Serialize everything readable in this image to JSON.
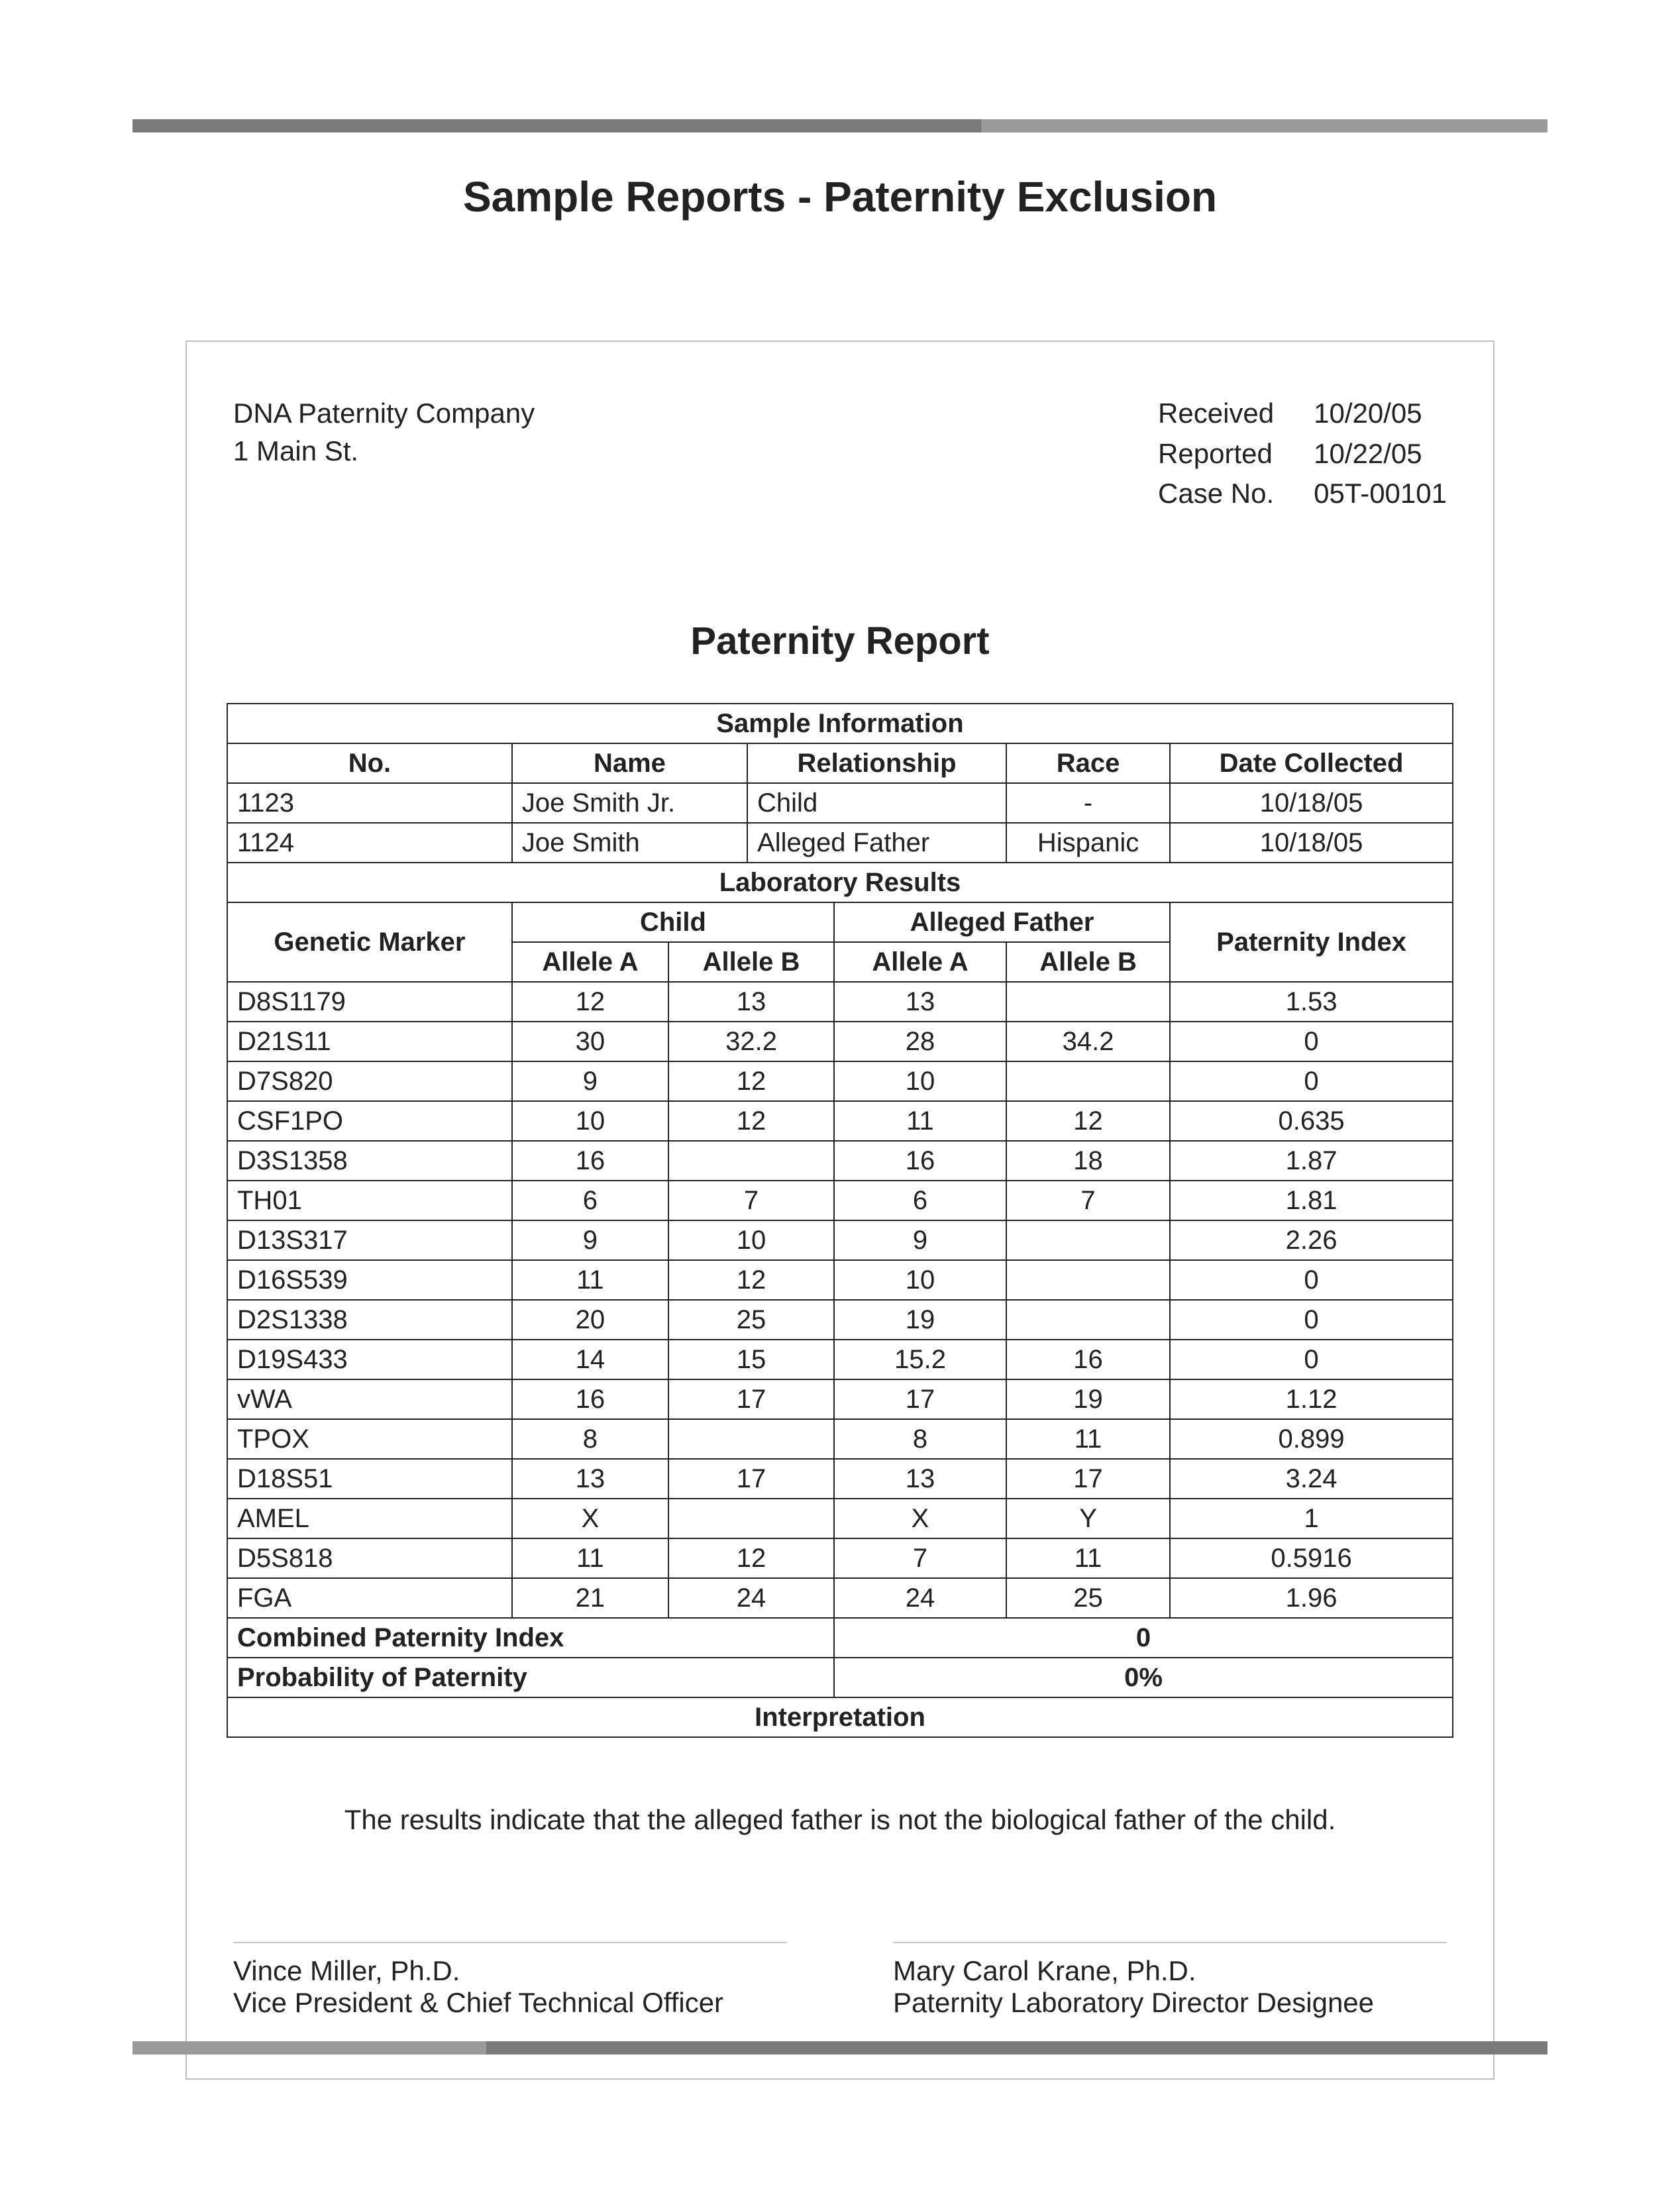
{
  "page_title": "Sample Reports - Paternity Exclusion",
  "company": {
    "name": "DNA Paternity Company",
    "address": "1 Main St."
  },
  "meta": {
    "received_label": "Received",
    "received_value": "10/20/05",
    "reported_label": "Reported",
    "reported_value": "10/22/05",
    "caseno_label": "Case No.",
    "caseno_value": "05T-00101"
  },
  "report_title": "Paternity Report",
  "sample_section": "Sample Information",
  "sample_headers": {
    "no": "No.",
    "name": "Name",
    "relationship": "Relationship",
    "race": "Race",
    "date_collected": "Date Collected"
  },
  "samples": [
    {
      "no": "1123",
      "name": "Joe Smith Jr.",
      "relationship": "Child",
      "race": "-",
      "date_collected": "10/18/05"
    },
    {
      "no": "1124",
      "name": "Joe Smith",
      "relationship": "Alleged Father",
      "race": "Hispanic",
      "date_collected": "10/18/05"
    }
  ],
  "lab_section": "Laboratory Results",
  "lab_headers": {
    "marker": "Genetic Marker",
    "child": "Child",
    "father": "Alleged Father",
    "allele_a": "Allele A",
    "allele_b": "Allele B",
    "paternity_index": "Paternity Index"
  },
  "lab_rows": [
    {
      "marker": "D8S1179",
      "ca": "12",
      "cb": "13",
      "fa": "13",
      "fb": "",
      "pi": "1.53"
    },
    {
      "marker": "D21S11",
      "ca": "30",
      "cb": "32.2",
      "fa": "28",
      "fb": "34.2",
      "pi": "0"
    },
    {
      "marker": "D7S820",
      "ca": "9",
      "cb": "12",
      "fa": "10",
      "fb": "",
      "pi": "0"
    },
    {
      "marker": "CSF1PO",
      "ca": "10",
      "cb": "12",
      "fa": "11",
      "fb": "12",
      "pi": "0.635"
    },
    {
      "marker": "D3S1358",
      "ca": "16",
      "cb": "",
      "fa": "16",
      "fb": "18",
      "pi": "1.87"
    },
    {
      "marker": "TH01",
      "ca": "6",
      "cb": "7",
      "fa": "6",
      "fb": "7",
      "pi": "1.81"
    },
    {
      "marker": "D13S317",
      "ca": "9",
      "cb": "10",
      "fa": "9",
      "fb": "",
      "pi": "2.26"
    },
    {
      "marker": "D16S539",
      "ca": "11",
      "cb": "12",
      "fa": "10",
      "fb": "",
      "pi": "0"
    },
    {
      "marker": "D2S1338",
      "ca": "20",
      "cb": "25",
      "fa": "19",
      "fb": "",
      "pi": "0"
    },
    {
      "marker": "D19S433",
      "ca": "14",
      "cb": "15",
      "fa": "15.2",
      "fb": "16",
      "pi": "0"
    },
    {
      "marker": "vWA",
      "ca": "16",
      "cb": "17",
      "fa": "17",
      "fb": "19",
      "pi": "1.12"
    },
    {
      "marker": "TPOX",
      "ca": "8",
      "cb": "",
      "fa": "8",
      "fb": "11",
      "pi": "0.899"
    },
    {
      "marker": "D18S51",
      "ca": "13",
      "cb": "17",
      "fa": "13",
      "fb": "17",
      "pi": "3.24"
    },
    {
      "marker": "AMEL",
      "ca": "X",
      "cb": "",
      "fa": "X",
      "fb": "Y",
      "pi": "1"
    },
    {
      "marker": "D5S818",
      "ca": "11",
      "cb": "12",
      "fa": "7",
      "fb": "11",
      "pi": "0.5916"
    },
    {
      "marker": "FGA",
      "ca": "21",
      "cb": "24",
      "fa": "24",
      "fb": "25",
      "pi": "1.96"
    }
  ],
  "summary": {
    "cpi_label": "Combined Paternity Index",
    "cpi_value": "0",
    "pop_label": "Probability of Paternity",
    "pop_value": "0%"
  },
  "interpretation_section": "Interpretation",
  "interpretation_text": "The results indicate that the alleged father is not the biological father of the child.",
  "signatures": [
    {
      "name": "Vince Miller, Ph.D.",
      "title": "Vice President & Chief Technical Officer"
    },
    {
      "name": "Mary Carol Krane, Ph.D.",
      "title": "Paternity Laboratory Director Designee"
    }
  ],
  "style": {
    "text_color": "#222222",
    "border_color": "#222222",
    "box_border_color": "#bfbfbf",
    "sig_line_color": "#c9c9c9",
    "bar_dark": "#7a7a7a",
    "bar_light": "#9a9a9a",
    "background": "#ffffff",
    "page_title_fontsize": 64,
    "report_title_fontsize": 58,
    "body_fontsize": 42,
    "table_fontsize": 40
  }
}
